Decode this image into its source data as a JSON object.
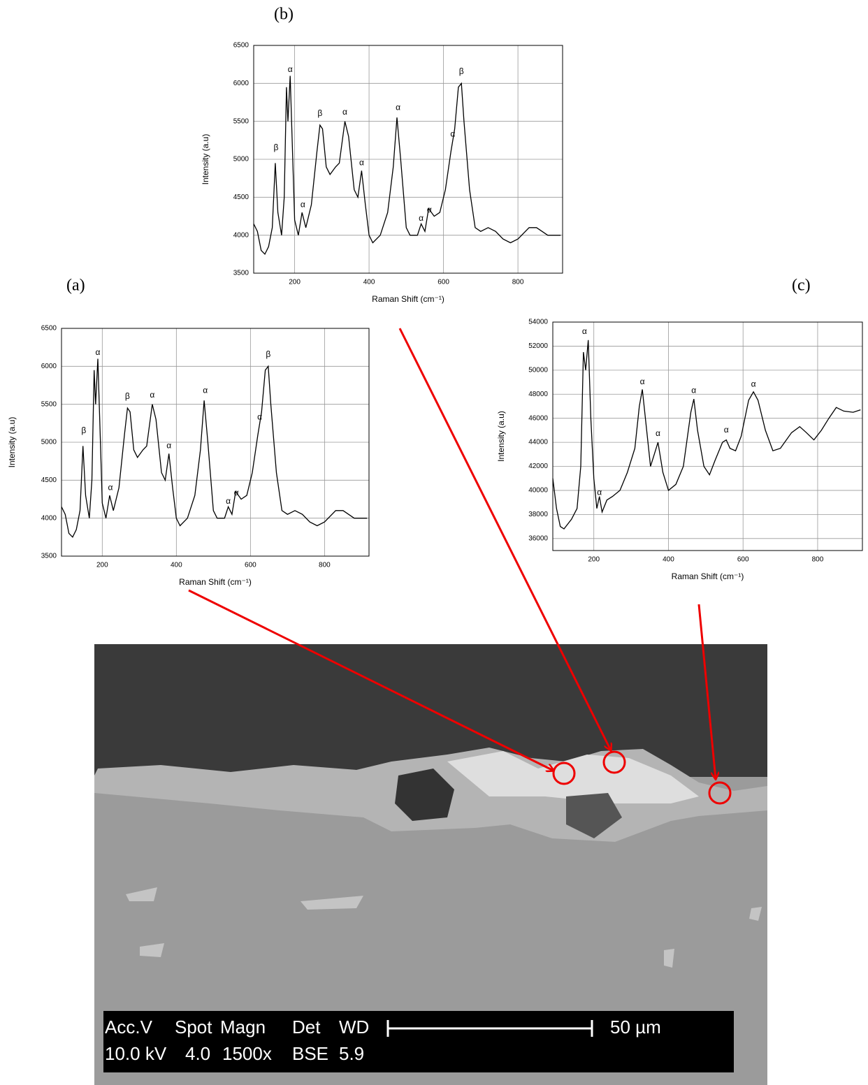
{
  "chart_data": [
    {
      "type": "line",
      "label": "(a)",
      "xlabel": "Raman Shift (cm⁻¹)",
      "ylabel": "Intensity (a.u)",
      "xlim": [
        90,
        920
      ],
      "ylim": [
        3500,
        6500
      ],
      "xticks": [
        200,
        400,
        600,
        800
      ],
      "yticks": [
        3500,
        4000,
        4500,
        5000,
        5500,
        6000,
        6500
      ],
      "grid": true,
      "color": "#000000",
      "x": [
        90,
        100,
        110,
        120,
        130,
        140,
        148,
        155,
        165,
        172,
        178,
        182,
        188,
        195,
        200,
        210,
        220,
        230,
        245,
        260,
        268,
        275,
        285,
        295,
        310,
        320,
        335,
        345,
        360,
        370,
        380,
        390,
        400,
        410,
        430,
        450,
        465,
        475,
        485,
        500,
        510,
        530,
        540,
        550,
        560,
        575,
        590,
        605,
        620,
        630,
        640,
        648,
        655,
        670,
        685,
        700,
        720,
        740,
        760,
        780,
        800,
        830,
        850,
        880,
        915
      ],
      "values": [
        4150,
        4050,
        3800,
        3750,
        3850,
        4100,
        4950,
        4300,
        4000,
        4500,
        5950,
        5500,
        6100,
        5000,
        4200,
        4000,
        4300,
        4100,
        4400,
        5100,
        5450,
        5400,
        4900,
        4800,
        4900,
        4950,
        5500,
        5300,
        4600,
        4500,
        4850,
        4400,
        4000,
        3900,
        4000,
        4300,
        4900,
        5550,
        5000,
        4100,
        4000,
        4000,
        4150,
        4050,
        4350,
        4250,
        4300,
        4600,
        5100,
        5400,
        5950,
        6000,
        5500,
        4600,
        4100,
        4050,
        4100,
        4050,
        3950,
        3900,
        3950,
        4100,
        4100,
        4000,
        4000
      ],
      "annotations": [
        {
          "text": "β",
          "x": 150,
          "y": 5150
        },
        {
          "text": "α",
          "x": 188,
          "y": 6180
        },
        {
          "text": "α",
          "x": 222,
          "y": 4400
        },
        {
          "text": "β",
          "x": 268,
          "y": 5600
        },
        {
          "text": "α",
          "x": 335,
          "y": 5620
        },
        {
          "text": "α",
          "x": 380,
          "y": 4950
        },
        {
          "text": "α",
          "x": 478,
          "y": 5680
        },
        {
          "text": "α",
          "x": 540,
          "y": 4220
        },
        {
          "text": "α",
          "x": 562,
          "y": 4330
        },
        {
          "text": "α",
          "x": 625,
          "y": 5330
        },
        {
          "text": "β",
          "x": 648,
          "y": 6150
        }
      ]
    },
    {
      "type": "line",
      "label": "(b)",
      "xlabel": "Raman Shift (cm⁻¹)",
      "ylabel": "Intensity (a.u)",
      "xlim": [
        90,
        920
      ],
      "ylim": [
        3500,
        6500
      ],
      "xticks": [
        200,
        400,
        600,
        800
      ],
      "yticks": [
        3500,
        4000,
        4500,
        5000,
        5500,
        6000,
        6500
      ],
      "grid": true,
      "color": "#000000",
      "x": [
        90,
        100,
        110,
        120,
        130,
        140,
        148,
        155,
        165,
        172,
        178,
        182,
        188,
        195,
        200,
        210,
        220,
        230,
        245,
        260,
        268,
        275,
        285,
        295,
        310,
        320,
        335,
        345,
        360,
        370,
        380,
        390,
        400,
        410,
        430,
        450,
        465,
        475,
        485,
        500,
        510,
        530,
        540,
        550,
        560,
        575,
        590,
        605,
        620,
        630,
        640,
        648,
        655,
        670,
        685,
        700,
        720,
        740,
        760,
        780,
        800,
        830,
        850,
        880,
        915
      ],
      "values": [
        4150,
        4050,
        3800,
        3750,
        3850,
        4100,
        4950,
        4300,
        4000,
        4500,
        5950,
        5500,
        6100,
        5000,
        4200,
        4000,
        4300,
        4100,
        4400,
        5100,
        5450,
        5400,
        4900,
        4800,
        4900,
        4950,
        5500,
        5300,
        4600,
        4500,
        4850,
        4400,
        4000,
        3900,
        4000,
        4300,
        4900,
        5550,
        5000,
        4100,
        4000,
        4000,
        4150,
        4050,
        4350,
        4250,
        4300,
        4600,
        5100,
        5400,
        5950,
        6000,
        5500,
        4600,
        4100,
        4050,
        4100,
        4050,
        3950,
        3900,
        3950,
        4100,
        4100,
        4000,
        4000
      ],
      "annotations": [
        {
          "text": "β",
          "x": 150,
          "y": 5150
        },
        {
          "text": "α",
          "x": 188,
          "y": 6180
        },
        {
          "text": "α",
          "x": 222,
          "y": 4400
        },
        {
          "text": "β",
          "x": 268,
          "y": 5600
        },
        {
          "text": "α",
          "x": 335,
          "y": 5620
        },
        {
          "text": "α",
          "x": 380,
          "y": 4950
        },
        {
          "text": "α",
          "x": 478,
          "y": 5680
        },
        {
          "text": "α",
          "x": 540,
          "y": 4220
        },
        {
          "text": "α",
          "x": 562,
          "y": 4330
        },
        {
          "text": "α",
          "x": 625,
          "y": 5330
        },
        {
          "text": "β",
          "x": 648,
          "y": 6150
        }
      ]
    },
    {
      "type": "line",
      "label": "(c)",
      "xlabel": "Raman Shift (cm⁻¹)",
      "ylabel": "Intensity (a.u)",
      "xlim": [
        90,
        920
      ],
      "ylim": [
        35000,
        54000
      ],
      "xticks": [
        200,
        400,
        600,
        800
      ],
      "yticks": [
        36000,
        38000,
        40000,
        42000,
        44000,
        46000,
        48000,
        50000,
        52000,
        54000
      ],
      "grid": true,
      "color": "#000000",
      "x": [
        90,
        100,
        110,
        120,
        140,
        155,
        165,
        172,
        178,
        185,
        192,
        200,
        208,
        215,
        222,
        235,
        250,
        270,
        290,
        310,
        322,
        330,
        340,
        352,
        362,
        372,
        385,
        400,
        420,
        440,
        460,
        468,
        478,
        495,
        510,
        525,
        545,
        555,
        565,
        580,
        595,
        615,
        628,
        640,
        660,
        680,
        700,
        730,
        752,
        770,
        790,
        810,
        830,
        850,
        870,
        895,
        915
      ],
      "values": [
        41000,
        38500,
        37000,
        36800,
        37600,
        38500,
        42000,
        51500,
        50000,
        52500,
        46000,
        41000,
        38500,
        39500,
        38200,
        39200,
        39500,
        40000,
        41500,
        43500,
        47000,
        48400,
        45500,
        42000,
        43000,
        44000,
        41500,
        40000,
        40500,
        42000,
        46500,
        47600,
        45000,
        42000,
        41300,
        42500,
        44000,
        44200,
        43500,
        43300,
        44500,
        47500,
        48200,
        47500,
        45000,
        43300,
        43500,
        44800,
        45300,
        44800,
        44200,
        45000,
        46000,
        46900,
        46600,
        46500,
        46700
      ],
      "annotations": [
        {
          "text": "α",
          "x": 175,
          "y": 53200
        },
        {
          "text": "α",
          "x": 215,
          "y": 39800
        },
        {
          "text": "α",
          "x": 330,
          "y": 49000
        },
        {
          "text": "α",
          "x": 372,
          "y": 44700
        },
        {
          "text": "α",
          "x": 468,
          "y": 48300
        },
        {
          "text": "α",
          "x": 555,
          "y": 45000
        },
        {
          "text": "α",
          "x": 628,
          "y": 48800
        }
      ]
    }
  ],
  "sem": {
    "row1": [
      "Acc.V",
      "Spot",
      "Magn",
      "Det",
      "WD",
      "50 µm"
    ],
    "row2": [
      "10.0 kV",
      "4.0",
      "1500x",
      "BSE",
      "5.9"
    ]
  }
}
